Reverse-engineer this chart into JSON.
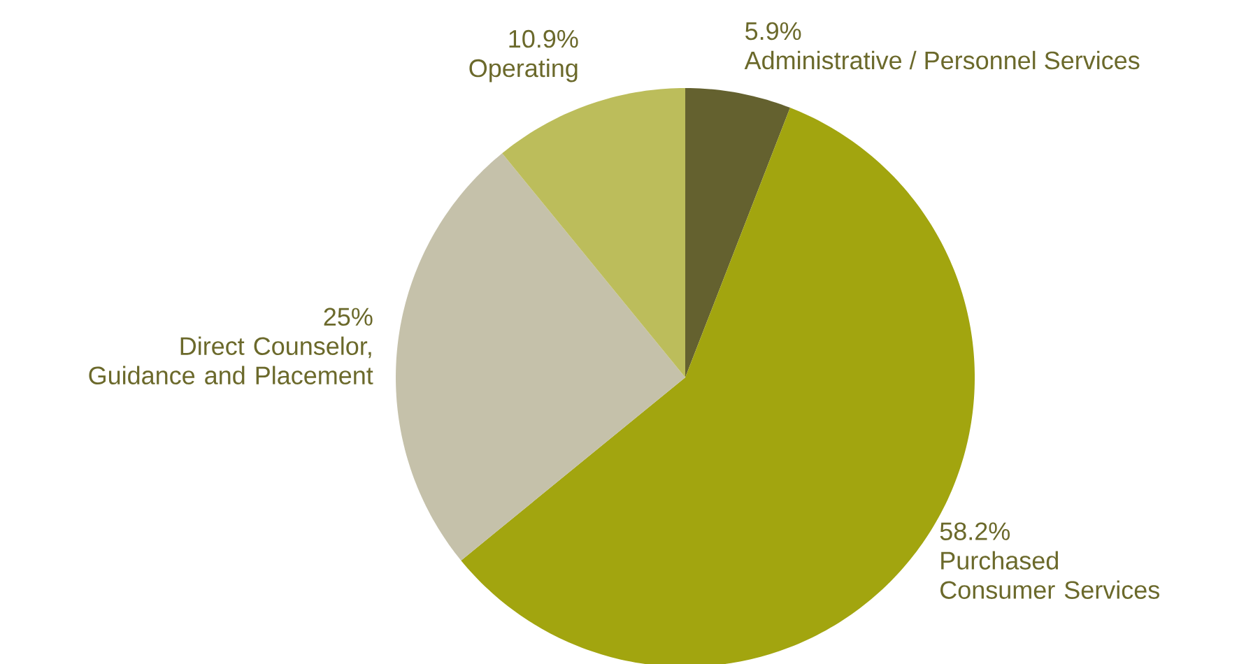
{
  "chart_data": {
    "type": "pie",
    "categories": [
      "Administrative / Personnel Services",
      "Purchased Consumer Services",
      "Direct Counselor, Guidance and Placement",
      "Operating"
    ],
    "values": [
      5.9,
      58.2,
      25,
      10.9
    ],
    "value_labels": [
      "5.9%",
      "58.2%",
      "25%",
      "10.9%"
    ],
    "colors": [
      "#64612f",
      "#a2a50f",
      "#c5c1aa",
      "#bcbd5b"
    ]
  }
}
